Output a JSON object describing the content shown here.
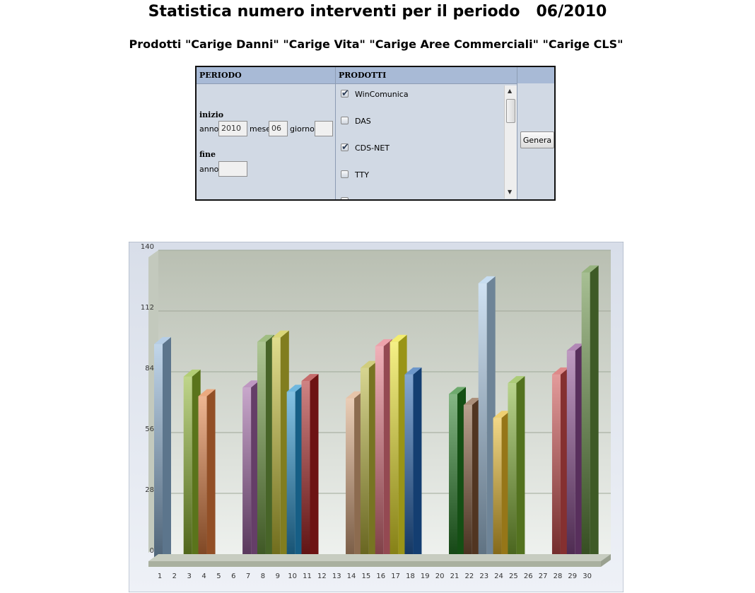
{
  "header": {
    "title": "Statistica numero interventi per il periodo   06/2010",
    "subtitle": "Prodotti \"Carige Danni\" \"Carige Vita\" \"Carige Aree Commerciali\" \"Carige CLS\""
  },
  "form": {
    "periodo_label": "PERIODO",
    "prodotti_label": "PRODOTTI",
    "inizio_label": "inizio",
    "fine_label": "fine",
    "anno_label": "anno",
    "mese_label": "mese",
    "giorno_label": "giorno",
    "inizio_anno_value": "2010",
    "inizio_mese_value": "06",
    "inizio_giorno_value": "",
    "fine_anno_value": "",
    "products": [
      {
        "label": "WinComunica",
        "checked": true
      },
      {
        "label": "DAS",
        "checked": false
      },
      {
        "label": "CDS-NET",
        "checked": true
      },
      {
        "label": "TTY",
        "checked": false
      }
    ],
    "genera_label": "Genera"
  },
  "chart_data": {
    "type": "bar",
    "categories": [
      "1",
      "2",
      "3",
      "4",
      "5",
      "6",
      "7",
      "8",
      "9",
      "10",
      "11",
      "12",
      "13",
      "14",
      "15",
      "16",
      "17",
      "18",
      "19",
      "20",
      "21",
      "22",
      "23",
      "24",
      "25",
      "26",
      "27",
      "28",
      "29",
      "30"
    ],
    "values": [
      100,
      0,
      85,
      76,
      0,
      0,
      80,
      101,
      103,
      78,
      83,
      0,
      0,
      75,
      89,
      99,
      101,
      86,
      0,
      0,
      77,
      72,
      128,
      66,
      82,
      0,
      0,
      86,
      97,
      133
    ],
    "ylim": [
      0,
      140
    ],
    "yticks": [
      0,
      28,
      56,
      84,
      112,
      140
    ],
    "grid": true,
    "colors": [
      "#8eb4d8",
      "#f3c236",
      "#8ab32a",
      "#e07a3a",
      "#3fb0b0",
      "#ef7f86",
      "#9b5fa0",
      "#6d9a3e",
      "#c6c030",
      "#2290cc",
      "#a81d1d",
      "#b7a3d6",
      "#e8934a",
      "#d8a47a",
      "#b7b235",
      "#e4707e",
      "#ece323",
      "#1f5fae",
      "#e8903a",
      "#c4542a",
      "#1f7a1f",
      "#7d5232",
      "#a9cbe9",
      "#e6b625",
      "#7fb02f",
      "#ef9266",
      "#41b3b3",
      "#cc4a4a",
      "#88488e",
      "#5f8a3a"
    ]
  }
}
